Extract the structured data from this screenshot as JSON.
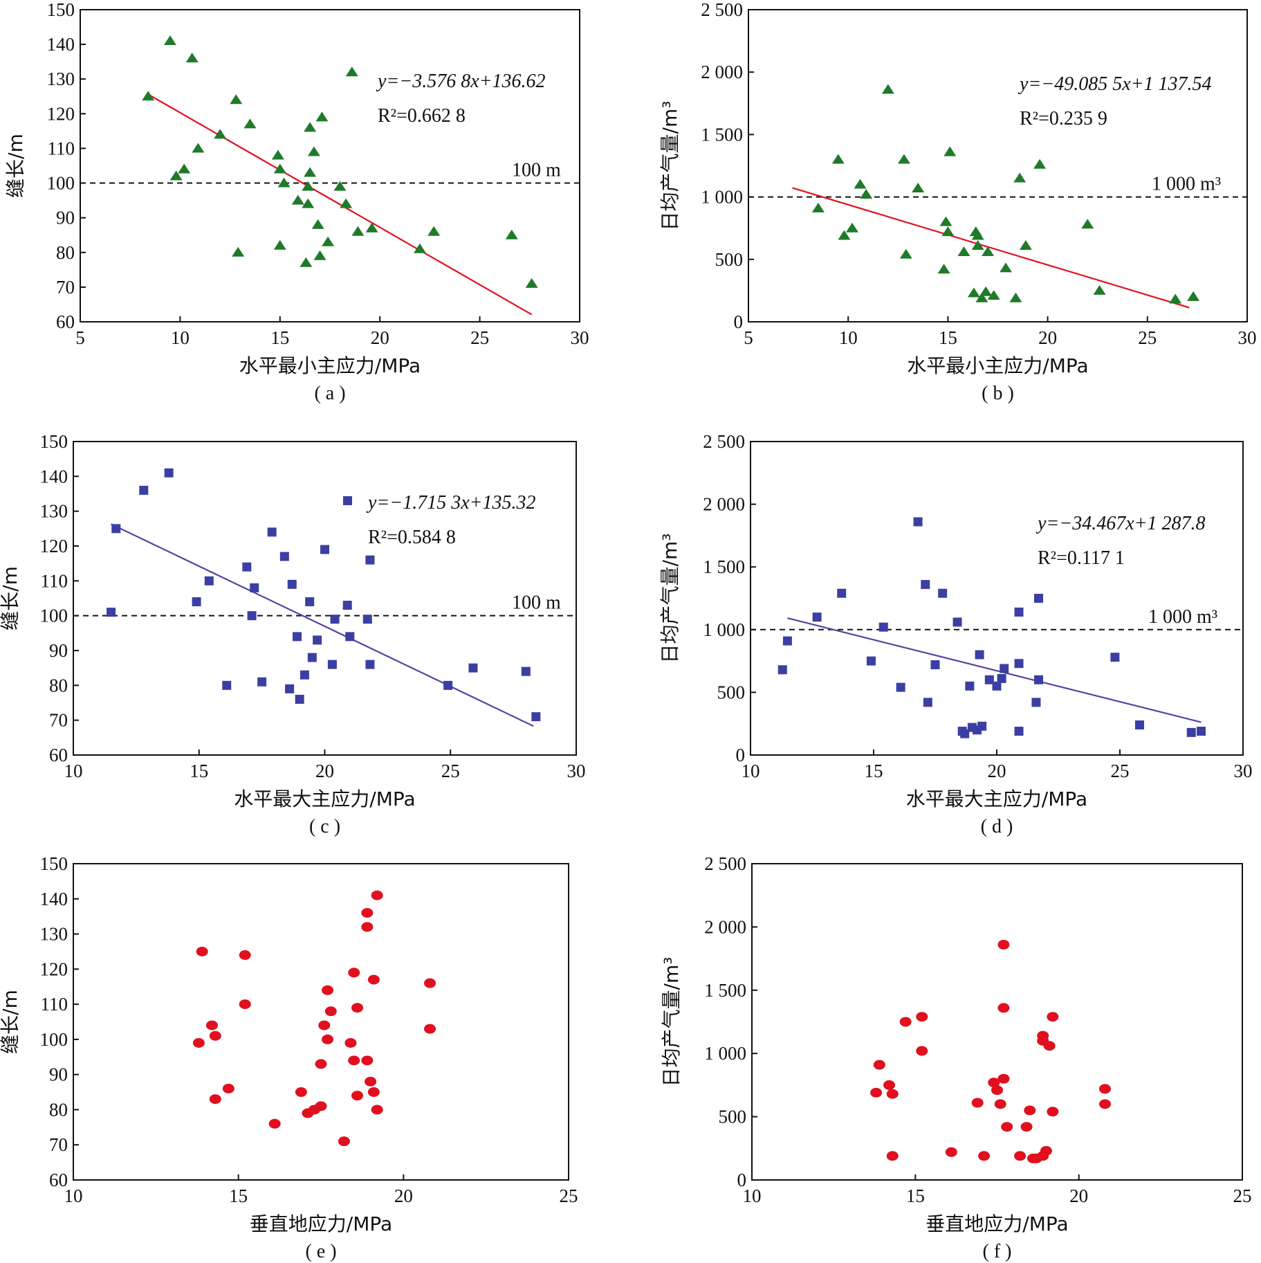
{
  "colors": {
    "green": "#1f7a2a",
    "blue": "#3b3fa3",
    "red": "#e0101f",
    "fit_red": "#e0101f",
    "fit_purple": "#5b3fa0"
  },
  "chart_data": [
    {
      "panel": "a",
      "type": "scatter",
      "marker": "triangle",
      "color": "#1f7a2a",
      "caption": "( a )",
      "xlabel": "水平最小主应力/MPa",
      "ylabel": "缝长/m",
      "xlim": [
        5,
        30
      ],
      "ylim": [
        60,
        150
      ],
      "xticks": [
        5,
        10,
        15,
        20,
        25,
        30
      ],
      "yticks": [
        60,
        70,
        80,
        90,
        100,
        110,
        120,
        130,
        140,
        150
      ],
      "xticklabels": [
        "5",
        "10",
        "15",
        "20",
        "25",
        "30"
      ],
      "yticklabels": [
        "60",
        "70",
        "80",
        "90",
        "100",
        "110",
        "120",
        "130",
        "140",
        "150"
      ],
      "points": [
        [
          8.4,
          125
        ],
        [
          9.5,
          141
        ],
        [
          10.6,
          136
        ],
        [
          9.8,
          102
        ],
        [
          10.2,
          104
        ],
        [
          10.9,
          110
        ],
        [
          12.0,
          114
        ],
        [
          12.8,
          124
        ],
        [
          12.9,
          80
        ],
        [
          13.5,
          117
        ],
        [
          14.9,
          108
        ],
        [
          15.0,
          104
        ],
        [
          15.0,
          82
        ],
        [
          15.2,
          100
        ],
        [
          15.9,
          95
        ],
        [
          16.3,
          77
        ],
        [
          16.4,
          99
        ],
        [
          16.4,
          94
        ],
        [
          16.5,
          103
        ],
        [
          16.5,
          116
        ],
        [
          16.7,
          109
        ],
        [
          16.9,
          88
        ],
        [
          17.0,
          79
        ],
        [
          17.1,
          119
        ],
        [
          17.4,
          83
        ],
        [
          18.0,
          99
        ],
        [
          18.3,
          94
        ],
        [
          18.6,
          132
        ],
        [
          18.9,
          86
        ],
        [
          19.6,
          87
        ],
        [
          22.0,
          81
        ],
        [
          22.7,
          86
        ],
        [
          26.6,
          85
        ],
        [
          27.6,
          71
        ]
      ],
      "fit": {
        "label": "y=−3.576 8x+136.62",
        "r2": "R²=0.662 8",
        "color": "#e0101f",
        "x": [
          8.4,
          27.6
        ],
        "y": [
          125.6,
          62.1
        ]
      },
      "reference": {
        "value": 100,
        "label": "100 m"
      }
    },
    {
      "panel": "b",
      "type": "scatter",
      "marker": "triangle",
      "color": "#1f7a2a",
      "caption": "( b )",
      "xlabel": "水平最小主应力/MPa",
      "ylabel": "日均产气量/m³",
      "xlim": [
        5,
        30
      ],
      "ylim": [
        0,
        2500
      ],
      "xticks": [
        5,
        10,
        15,
        20,
        25,
        30
      ],
      "yticks": [
        0,
        500,
        1000,
        1500,
        2000,
        2500
      ],
      "xticklabels": [
        "5",
        "10",
        "15",
        "20",
        "25",
        "30"
      ],
      "yticklabels": [
        "0",
        "500",
        "1 000",
        "1 500",
        "2 000",
        "2 500"
      ],
      "points": [
        [
          8.5,
          910
        ],
        [
          9.5,
          1300
        ],
        [
          9.8,
          690
        ],
        [
          10.2,
          750
        ],
        [
          10.6,
          1100
        ],
        [
          10.9,
          1020
        ],
        [
          12.0,
          1860
        ],
        [
          12.8,
          1300
        ],
        [
          12.9,
          540
        ],
        [
          13.5,
          1070
        ],
        [
          14.8,
          420
        ],
        [
          14.9,
          800
        ],
        [
          15.0,
          720
        ],
        [
          15.1,
          1360
        ],
        [
          15.8,
          560
        ],
        [
          16.3,
          230
        ],
        [
          16.4,
          720
        ],
        [
          16.5,
          690
        ],
        [
          16.5,
          610
        ],
        [
          16.7,
          190
        ],
        [
          16.9,
          240
        ],
        [
          17.0,
          560
        ],
        [
          17.3,
          210
        ],
        [
          17.9,
          430
        ],
        [
          18.4,
          190
        ],
        [
          18.6,
          1150
        ],
        [
          18.9,
          610
        ],
        [
          19.6,
          1260
        ],
        [
          22.0,
          780
        ],
        [
          22.6,
          250
        ],
        [
          26.4,
          180
        ],
        [
          27.3,
          200
        ]
      ],
      "fit": {
        "label": "y=−49.085 5x+1 137.54",
        "r2": "R²=0.235 9",
        "color": "#e0101f",
        "x": [
          7.2,
          27.1
        ],
        "y": [
          1073,
          113
        ]
      },
      "reference": {
        "value": 1000,
        "label": "1 000 m³"
      }
    },
    {
      "panel": "c",
      "type": "scatter",
      "marker": "square",
      "color": "#3b3fa3",
      "caption": "( c )",
      "xlabel": "水平最大主应力/MPa",
      "ylabel": "缝长/m",
      "xlim": [
        10,
        30
      ],
      "ylim": [
        60,
        150
      ],
      "xticks": [
        10,
        15,
        20,
        25,
        30
      ],
      "yticks": [
        60,
        70,
        80,
        90,
        100,
        110,
        120,
        130,
        140,
        150
      ],
      "xticklabels": [
        "10",
        "15",
        "20",
        "25",
        "30"
      ],
      "yticklabels": [
        "60",
        "70",
        "80",
        "90",
        "100",
        "110",
        "120",
        "130",
        "140",
        "150"
      ],
      "points": [
        [
          11.5,
          101
        ],
        [
          11.7,
          125
        ],
        [
          12.8,
          136
        ],
        [
          13.8,
          141
        ],
        [
          14.9,
          104
        ],
        [
          15.4,
          110
        ],
        [
          16.1,
          80
        ],
        [
          16.9,
          114
        ],
        [
          17.1,
          100
        ],
        [
          17.2,
          108
        ],
        [
          17.5,
          81
        ],
        [
          17.9,
          124
        ],
        [
          18.4,
          117
        ],
        [
          18.6,
          79
        ],
        [
          18.7,
          109
        ],
        [
          18.9,
          94
        ],
        [
          19.0,
          76
        ],
        [
          19.2,
          83
        ],
        [
          19.4,
          104
        ],
        [
          19.5,
          88
        ],
        [
          19.7,
          93
        ],
        [
          20.0,
          119
        ],
        [
          20.3,
          86
        ],
        [
          20.4,
          99
        ],
        [
          20.9,
          103
        ],
        [
          21.0,
          94
        ],
        [
          21.7,
          99
        ],
        [
          21.8,
          116
        ],
        [
          21.8,
          86
        ],
        [
          24.9,
          80
        ],
        [
          25.9,
          85
        ],
        [
          28.0,
          84
        ],
        [
          28.4,
          71
        ]
      ],
      "fit": {
        "label": "y=−1.715 3x+135.32",
        "r2": "R²=0.584 8",
        "color": "#5b3fa0",
        "x": [
          11.5,
          28.3
        ],
        "y": [
          126.3,
          68.3
        ]
      },
      "reference": {
        "value": 100,
        "label": "100 m"
      },
      "legend_marker": true
    },
    {
      "panel": "d",
      "type": "scatter",
      "marker": "square",
      "color": "#3b3fa3",
      "caption": "( d )",
      "xlabel": "水平最大主应力/MPa",
      "ylabel": "日均产气量/m³",
      "xlim": [
        10,
        30
      ],
      "ylim": [
        0,
        2500
      ],
      "xticks": [
        10,
        15,
        20,
        25,
        30
      ],
      "yticks": [
        0,
        500,
        1000,
        1500,
        2000,
        2500
      ],
      "xticklabels": [
        "10",
        "15",
        "20",
        "25",
        "30"
      ],
      "yticklabels": [
        "0",
        "500",
        "1 000",
        "1 500",
        "2 000",
        "2 500"
      ],
      "points": [
        [
          11.3,
          680
        ],
        [
          11.5,
          910
        ],
        [
          12.7,
          1100
        ],
        [
          13.7,
          1290
        ],
        [
          14.9,
          750
        ],
        [
          15.4,
          1020
        ],
        [
          16.1,
          540
        ],
        [
          16.8,
          1860
        ],
        [
          17.1,
          1360
        ],
        [
          17.2,
          420
        ],
        [
          17.5,
          720
        ],
        [
          17.8,
          1290
        ],
        [
          18.4,
          1060
        ],
        [
          18.6,
          190
        ],
        [
          18.7,
          170
        ],
        [
          18.9,
          550
        ],
        [
          19.0,
          220
        ],
        [
          19.2,
          200
        ],
        [
          19.3,
          800
        ],
        [
          19.4,
          230
        ],
        [
          19.7,
          600
        ],
        [
          20.0,
          550
        ],
        [
          20.2,
          610
        ],
        [
          20.3,
          690
        ],
        [
          20.9,
          730
        ],
        [
          20.9,
          1140
        ],
        [
          20.9,
          190
        ],
        [
          21.6,
          420
        ],
        [
          21.7,
          600
        ],
        [
          21.7,
          1250
        ],
        [
          24.8,
          780
        ],
        [
          25.8,
          240
        ],
        [
          27.9,
          180
        ],
        [
          28.3,
          190
        ]
      ],
      "fit": {
        "label": "y=−34.467x+1 287.8",
        "r2": "R²=0.117 1",
        "color": "#5b3fa0",
        "x": [
          11.5,
          28.3
        ],
        "y": [
          1092,
          262
        ]
      },
      "reference": {
        "value": 1000,
        "label": "1 000 m³"
      }
    },
    {
      "panel": "e",
      "type": "scatter",
      "marker": "circle",
      "color": "#e0101f",
      "caption": "( e )",
      "xlabel": "垂直地应力/MPa",
      "ylabel": "缝长/m",
      "xlim": [
        10,
        25
      ],
      "ylim": [
        60,
        150
      ],
      "xticks": [
        10,
        15,
        20,
        25
      ],
      "yticks": [
        60,
        70,
        80,
        90,
        100,
        110,
        120,
        130,
        140,
        150
      ],
      "xticklabels": [
        "10",
        "15",
        "20",
        "25"
      ],
      "yticklabels": [
        "60",
        "70",
        "80",
        "90",
        "100",
        "110",
        "120",
        "130",
        "140",
        "150"
      ],
      "points": [
        [
          13.8,
          99
        ],
        [
          13.9,
          125
        ],
        [
          14.2,
          104
        ],
        [
          14.3,
          101
        ],
        [
          14.3,
          83
        ],
        [
          14.7,
          86
        ],
        [
          15.2,
          110
        ],
        [
          15.2,
          124
        ],
        [
          16.1,
          76
        ],
        [
          16.9,
          85
        ],
        [
          17.1,
          79
        ],
        [
          17.3,
          80
        ],
        [
          17.5,
          81
        ],
        [
          17.5,
          93
        ],
        [
          17.6,
          104
        ],
        [
          17.7,
          114
        ],
        [
          17.7,
          100
        ],
        [
          17.8,
          108
        ],
        [
          18.2,
          71
        ],
        [
          18.4,
          99
        ],
        [
          18.5,
          119
        ],
        [
          18.5,
          94
        ],
        [
          18.6,
          109
        ],
        [
          18.6,
          84
        ],
        [
          18.9,
          136
        ],
        [
          18.9,
          132
        ],
        [
          18.9,
          94
        ],
        [
          19.0,
          88
        ],
        [
          19.1,
          85
        ],
        [
          19.1,
          117
        ],
        [
          19.2,
          141
        ],
        [
          19.2,
          80
        ],
        [
          20.8,
          116
        ],
        [
          20.8,
          103
        ]
      ],
      "fit": null,
      "reference": null
    },
    {
      "panel": "f",
      "type": "scatter",
      "marker": "circle",
      "color": "#e0101f",
      "caption": "( f )",
      "xlabel": "垂直地应力/MPa",
      "ylabel": "日均产气量/m³",
      "xlim": [
        10,
        25
      ],
      "ylim": [
        0,
        2500
      ],
      "xticks": [
        10,
        15,
        20,
        25
      ],
      "yticks": [
        0,
        500,
        1000,
        1500,
        2000,
        2500
      ],
      "xticklabels": [
        "10",
        "15",
        "20",
        "25"
      ],
      "yticklabels": [
        "0",
        "500",
        "1 000",
        "1 500",
        "2 000",
        "2 500"
      ],
      "points": [
        [
          13.8,
          690
        ],
        [
          13.9,
          910
        ],
        [
          14.2,
          750
        ],
        [
          14.3,
          680
        ],
        [
          14.3,
          190
        ],
        [
          14.7,
          1250
        ],
        [
          15.2,
          1290
        ],
        [
          15.2,
          1020
        ],
        [
          16.1,
          220
        ],
        [
          16.9,
          610
        ],
        [
          17.1,
          190
        ],
        [
          17.4,
          770
        ],
        [
          17.5,
          710
        ],
        [
          17.6,
          600
        ],
        [
          17.7,
          800
        ],
        [
          17.7,
          1360
        ],
        [
          17.7,
          1860
        ],
        [
          17.8,
          420
        ],
        [
          18.2,
          190
        ],
        [
          18.4,
          420
        ],
        [
          18.5,
          550
        ],
        [
          18.6,
          170
        ],
        [
          18.7,
          170
        ],
        [
          18.9,
          1140
        ],
        [
          18.9,
          1100
        ],
        [
          18.9,
          190
        ],
        [
          19.0,
          230
        ],
        [
          19.1,
          1060
        ],
        [
          19.2,
          1290
        ],
        [
          19.2,
          540
        ],
        [
          20.8,
          720
        ],
        [
          20.8,
          600
        ]
      ],
      "fit": null,
      "reference": null
    }
  ]
}
